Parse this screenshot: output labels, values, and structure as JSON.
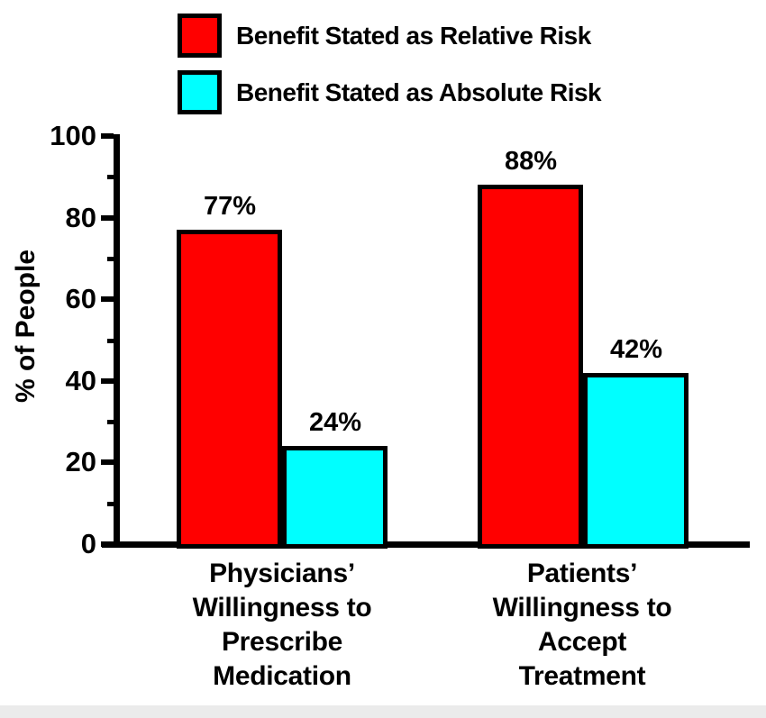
{
  "legend": {
    "items": [
      {
        "name": "relative-risk",
        "label": "Benefit Stated as Relative Risk",
        "color": "#ff0000"
      },
      {
        "name": "absolute-risk",
        "label": "Benefit Stated as Absolute Risk",
        "color": "#00ffff"
      }
    ]
  },
  "chart_data": {
    "type": "bar",
    "title": "",
    "xlabel": "",
    "ylabel": "% of People",
    "ylim": [
      0,
      100
    ],
    "yticks": [
      0,
      20,
      40,
      60,
      80,
      100
    ],
    "yticks_minor": [
      10,
      30,
      50,
      70,
      90
    ],
    "grid": false,
    "legend_position": "top",
    "categories": [
      "Physicians’\nWillingness to\nPrescribe\nMedication",
      "Patients’\nWillingness to\nAccept\nTreatment"
    ],
    "series": [
      {
        "name": "Benefit Stated as Relative Risk",
        "color": "#ff0000",
        "values": [
          77,
          88
        ]
      },
      {
        "name": "Benefit Stated as Absolute Risk",
        "color": "#00ffff",
        "values": [
          24,
          42
        ]
      }
    ],
    "value_labels": [
      [
        "77%",
        "88%"
      ],
      [
        "24%",
        "42%"
      ]
    ]
  },
  "colors": {
    "bar_border": "#000000",
    "axis": "#000000",
    "text": "#000000",
    "background": "#ffffff",
    "footer_strip": "#ebebeb"
  }
}
